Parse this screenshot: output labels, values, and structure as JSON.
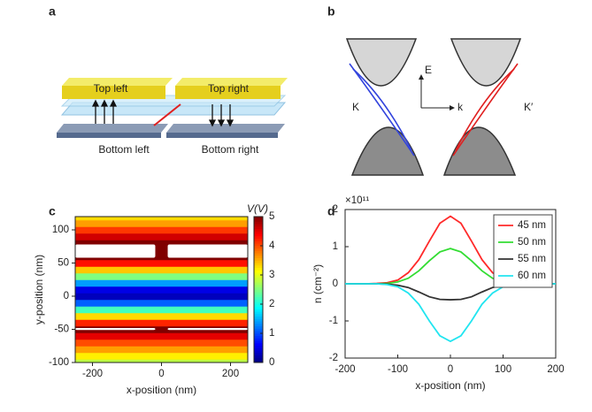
{
  "panel_labels": [
    "a",
    "b",
    "c",
    "d"
  ],
  "diagram_a": {
    "top_left": "Top left",
    "top_right": "Top right",
    "bottom_left": "Bottom left",
    "bottom_right": "Bottom right"
  },
  "diagram_b": {
    "energy_axis": "E",
    "momentum_axis": "k",
    "valley_left": "K",
    "valley_right": "K′"
  },
  "chart_data": [
    {
      "type": "heatmap",
      "xlabel": "x-position (nm)",
      "ylabel": "y-position (nm)",
      "colorbar_label": "V(V)",
      "colormap": "jet",
      "xlim": [
        -250,
        250
      ],
      "xticks": [
        -200,
        0,
        200
      ],
      "ylim": [
        -100,
        120
      ],
      "yticks": [
        -100,
        -50,
        0,
        50,
        100
      ],
      "clim": [
        0,
        5
      ],
      "cticks": [
        0,
        1,
        2,
        3,
        4,
        5
      ],
      "y": [
        -100,
        -90,
        -80,
        -70,
        -60,
        -50,
        -40,
        -30,
        -20,
        -10,
        0,
        10,
        20,
        30,
        40,
        50,
        60,
        70,
        80,
        90,
        100,
        110,
        120
      ],
      "values": [
        2.8,
        3.2,
        3.6,
        4.0,
        4.5,
        5,
        4.2,
        3.3,
        2.2,
        1.1,
        0.3,
        0.5,
        1.4,
        2.5,
        3.4,
        4.3,
        5,
        5,
        5,
        4.6,
        4.1,
        3.6,
        3.3
      ],
      "electrodes": [
        {
          "x": [
            -250,
            -18
          ],
          "y": [
            58,
            78
          ]
        },
        {
          "x": [
            18,
            250
          ],
          "y": [
            58,
            78
          ]
        },
        {
          "x": [
            -250,
            -18
          ],
          "y": [
            -51,
            -48
          ]
        },
        {
          "x": [
            18,
            250
          ],
          "y": [
            -51,
            -48
          ]
        }
      ]
    },
    {
      "type": "line",
      "xlabel": "x-position (nm)",
      "ylabel": "n (cm⁻²)",
      "y_multiplier": "×10¹¹",
      "xlim": [
        -200,
        200
      ],
      "xticks": [
        -200,
        -100,
        0,
        100,
        200
      ],
      "ylim": [
        -2,
        2
      ],
      "yticks": [
        -2,
        -1,
        0,
        1,
        2
      ],
      "legend": "upper right",
      "x": [
        -200,
        -180,
        -160,
        -140,
        -120,
        -100,
        -80,
        -60,
        -40,
        -20,
        0,
        20,
        40,
        60,
        80,
        100,
        120,
        140,
        160,
        180,
        200
      ],
      "series": [
        {
          "name": "45 nm",
          "color": "#ff2a2a",
          "values": [
            0,
            0,
            0,
            0.01,
            0.03,
            0.1,
            0.3,
            0.65,
            1.15,
            1.63,
            1.82,
            1.63,
            1.15,
            0.65,
            0.3,
            0.1,
            0.03,
            0.01,
            0,
            0,
            0
          ]
        },
        {
          "name": "50 nm",
          "color": "#33dd33",
          "values": [
            0,
            0,
            0,
            0,
            0.01,
            0.05,
            0.15,
            0.35,
            0.62,
            0.86,
            0.95,
            0.86,
            0.62,
            0.35,
            0.15,
            0.05,
            0.01,
            0,
            0,
            0,
            0
          ]
        },
        {
          "name": "55 nm",
          "color": "#333333",
          "values": [
            0,
            0,
            0,
            0,
            -0.01,
            -0.04,
            -0.1,
            -0.22,
            -0.35,
            -0.42,
            -0.43,
            -0.42,
            -0.35,
            -0.22,
            -0.1,
            -0.04,
            -0.01,
            0,
            0,
            0,
            0
          ]
        },
        {
          "name": "60 nm",
          "color": "#22e5f0",
          "values": [
            0,
            0,
            0,
            0,
            -0.02,
            -0.08,
            -0.25,
            -0.55,
            -1.0,
            -1.4,
            -1.55,
            -1.4,
            -1.0,
            -0.55,
            -0.25,
            -0.08,
            -0.02,
            0,
            0,
            0,
            0
          ]
        }
      ]
    }
  ]
}
